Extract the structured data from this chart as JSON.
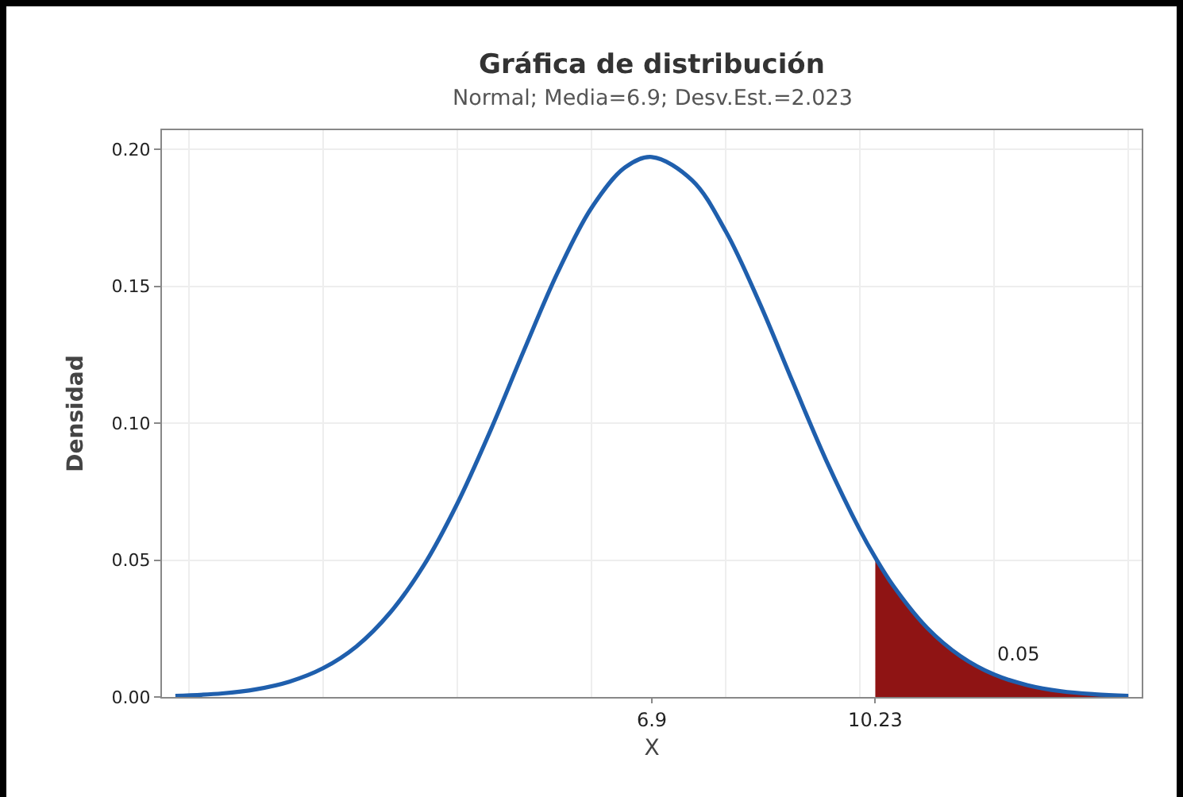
{
  "chart_data": {
    "type": "line",
    "title": "Gráfica de distribución",
    "subtitle": "Normal; Media=6.9; Desv.Est.=2.023",
    "xlabel": "X",
    "ylabel": "Densidad",
    "series": [
      {
        "color": "#1f5fad",
        "x": [
          -0.2,
          0.5,
          1,
          1.5,
          2,
          2.5,
          3,
          3.5,
          4,
          4.5,
          5,
          5.5,
          6,
          6.5,
          6.9,
          7.5,
          8,
          8.5,
          9,
          9.5,
          10,
          10.23,
          10.5,
          11,
          11.5,
          12,
          12.5,
          13,
          13.5,
          14
        ],
        "values": [
          0.0004,
          0.0013,
          0.0028,
          0.0056,
          0.0105,
          0.0185,
          0.0308,
          0.048,
          0.0706,
          0.0976,
          0.1269,
          0.1552,
          0.1786,
          0.1934,
          0.1972,
          0.1887,
          0.1701,
          0.1442,
          0.115,
          0.0863,
          0.061,
          0.0509,
          0.0405,
          0.0253,
          0.0149,
          0.0082,
          0.0043,
          0.0021,
          0.001,
          0.0004
        ]
      },
      {
        "type": "area",
        "color": "#8f1414",
        "x": [
          10.23,
          10.5,
          11,
          11.5,
          12,
          12.5,
          13,
          13.5,
          14
        ],
        "values": [
          0.0509,
          0.0405,
          0.0253,
          0.0149,
          0.0082,
          0.0043,
          0.0021,
          0.001,
          0.0004
        ]
      }
    ],
    "annotations": [
      {
        "text": "0.05",
        "x": 12,
        "y": 0.0082
      }
    ],
    "xlim": [
      -0.4,
      14.2
    ],
    "xticks": [
      {
        "value": 0,
        "label": null
      },
      {
        "value": 2,
        "label": null
      },
      {
        "value": 4,
        "label": null
      },
      {
        "value": 6,
        "label": null
      },
      6.9,
      {
        "value": 8,
        "label": null
      },
      {
        "value": 10,
        "label": null
      },
      10.23,
      {
        "value": 12,
        "label": null
      },
      {
        "value": 14,
        "label": null
      }
    ],
    "ylim": [
      0,
      0.207
    ],
    "yticks": [
      {
        "value": 0,
        "label": "0.00"
      },
      0.05,
      {
        "value": 0.1,
        "label": "0.10"
      },
      0.15,
      {
        "value": 0.2,
        "label": "0.20"
      }
    ],
    "grid": true,
    "marker": "none",
    "line_style": "solid"
  }
}
